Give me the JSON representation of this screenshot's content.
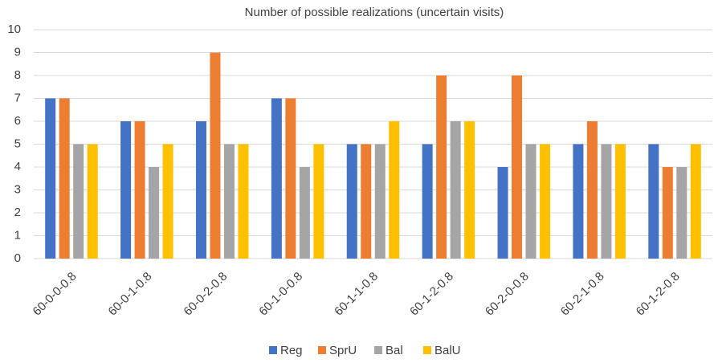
{
  "chart_data": {
    "type": "bar",
    "title": "Number of possible realizations (uncertain visits)",
    "categories": [
      "60-0-0-0.8",
      "60-0-1-0.8",
      "60-0-2-0.8",
      "60-1-0-0.8",
      "60-1-1-0.8",
      "60-1-2-0.8",
      "60-2-0-0.8",
      "60-2-1-0.8",
      "60-1-2-0.8"
    ],
    "series": [
      {
        "name": "Reg",
        "color": "#4472c4",
        "values": [
          7,
          6,
          6,
          7,
          5,
          5,
          4,
          5,
          5
        ]
      },
      {
        "name": "SprU",
        "color": "#ed7d31",
        "values": [
          7,
          6,
          9,
          7,
          5,
          8,
          8,
          6,
          4
        ]
      },
      {
        "name": "Bal",
        "color": "#a5a5a5",
        "values": [
          5,
          4,
          5,
          4,
          5,
          6,
          5,
          5,
          4
        ]
      },
      {
        "name": "BalU",
        "color": "#ffc000",
        "values": [
          5,
          5,
          5,
          5,
          6,
          6,
          5,
          5,
          5
        ]
      }
    ],
    "ylim": [
      0,
      10
    ],
    "yticks": [
      0,
      1,
      2,
      3,
      4,
      5,
      6,
      7,
      8,
      9,
      10
    ],
    "grid": true,
    "legend": "bottom"
  }
}
